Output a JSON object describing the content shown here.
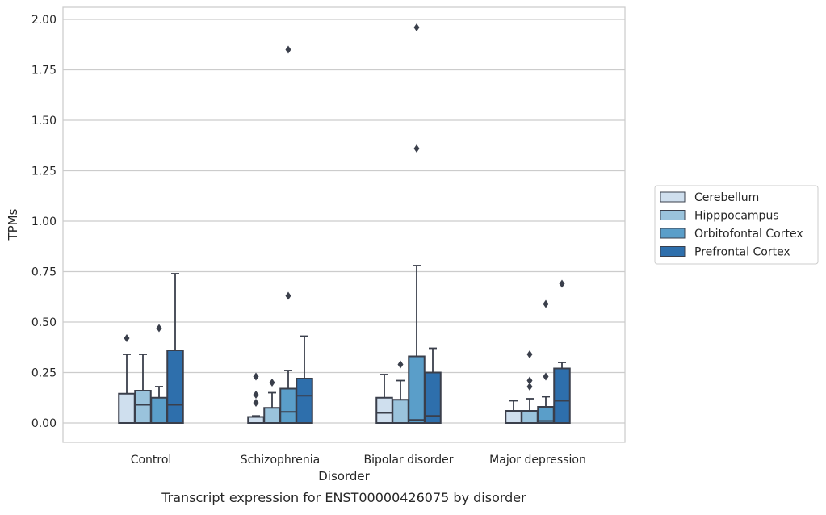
{
  "chart_data": {
    "type": "box",
    "caption": "Transcript expression for ENST00000426075 by disorder",
    "xlabel": "Disorder",
    "ylabel": "TPMs",
    "ylim": [
      -0.095,
      2.06
    ],
    "yticks": [
      "0.00",
      "0.25",
      "0.50",
      "0.75",
      "1.00",
      "1.25",
      "1.50",
      "1.75",
      "2.00"
    ],
    "categories": [
      "Control",
      "Schizophrenia",
      "Bipolar disorder",
      "Major depression"
    ],
    "grid": "horizontal",
    "legend_position": "right",
    "series": [
      {
        "name": "Cerebellum",
        "color": "#cfdfee",
        "boxes": [
          {
            "q1": 0.0,
            "median": 0.0,
            "q3": 0.145,
            "whisker_low": 0.0,
            "whisker_high": 0.34,
            "outliers": [
              0.42
            ]
          },
          {
            "q1": 0.0,
            "median": 0.0,
            "q3": 0.03,
            "whisker_low": 0.0,
            "whisker_high": 0.035,
            "outliers": [
              0.1,
              0.14,
              0.23
            ]
          },
          {
            "q1": 0.0,
            "median": 0.05,
            "q3": 0.125,
            "whisker_low": 0.0,
            "whisker_high": 0.24,
            "outliers": []
          },
          {
            "q1": 0.0,
            "median": 0.0,
            "q3": 0.06,
            "whisker_low": 0.0,
            "whisker_high": 0.11,
            "outliers": []
          }
        ]
      },
      {
        "name": "Hipppocampus",
        "color": "#9ac3dc",
        "boxes": [
          {
            "q1": 0.0,
            "median": 0.09,
            "q3": 0.16,
            "whisker_low": 0.0,
            "whisker_high": 0.34,
            "outliers": []
          },
          {
            "q1": 0.0,
            "median": 0.0,
            "q3": 0.075,
            "whisker_low": 0.0,
            "whisker_high": 0.15,
            "outliers": [
              0.2
            ]
          },
          {
            "q1": 0.0,
            "median": 0.0,
            "q3": 0.115,
            "whisker_low": 0.0,
            "whisker_high": 0.21,
            "outliers": [
              0.29
            ]
          },
          {
            "q1": 0.0,
            "median": 0.0,
            "q3": 0.06,
            "whisker_low": 0.0,
            "whisker_high": 0.12,
            "outliers": [
              0.18,
              0.21,
              0.34
            ]
          }
        ]
      },
      {
        "name": "Orbitofontal Cortex",
        "color": "#5a9ec9",
        "boxes": [
          {
            "q1": 0.0,
            "median": 0.0,
            "q3": 0.125,
            "whisker_low": 0.0,
            "whisker_high": 0.18,
            "outliers": [
              0.47
            ]
          },
          {
            "q1": 0.0,
            "median": 0.055,
            "q3": 0.17,
            "whisker_low": 0.0,
            "whisker_high": 0.26,
            "outliers": [
              0.63,
              1.85
            ]
          },
          {
            "q1": 0.0,
            "median": 0.015,
            "q3": 0.33,
            "whisker_low": 0.0,
            "whisker_high": 0.78,
            "outliers": [
              1.36,
              1.96
            ]
          },
          {
            "q1": 0.0,
            "median": 0.01,
            "q3": 0.08,
            "whisker_low": 0.0,
            "whisker_high": 0.13,
            "outliers": [
              0.23,
              0.59
            ]
          }
        ]
      },
      {
        "name": "Prefrontal Cortex",
        "color": "#2e6fac",
        "boxes": [
          {
            "q1": 0.0,
            "median": 0.09,
            "q3": 0.36,
            "whisker_low": 0.0,
            "whisker_high": 0.74,
            "outliers": []
          },
          {
            "q1": 0.0,
            "median": 0.135,
            "q3": 0.22,
            "whisker_low": 0.0,
            "whisker_high": 0.43,
            "outliers": []
          },
          {
            "q1": 0.0,
            "median": 0.035,
            "q3": 0.25,
            "whisker_low": 0.0,
            "whisker_high": 0.37,
            "outliers": []
          },
          {
            "q1": 0.0,
            "median": 0.11,
            "q3": 0.27,
            "whisker_low": 0.0,
            "whisker_high": 0.3,
            "outliers": [
              0.69
            ]
          }
        ]
      }
    ],
    "colors": {
      "line": "#3a3f4b",
      "grid": "#cccccc",
      "frame": "#cccccc",
      "outlier": "#3a3f4b"
    }
  }
}
